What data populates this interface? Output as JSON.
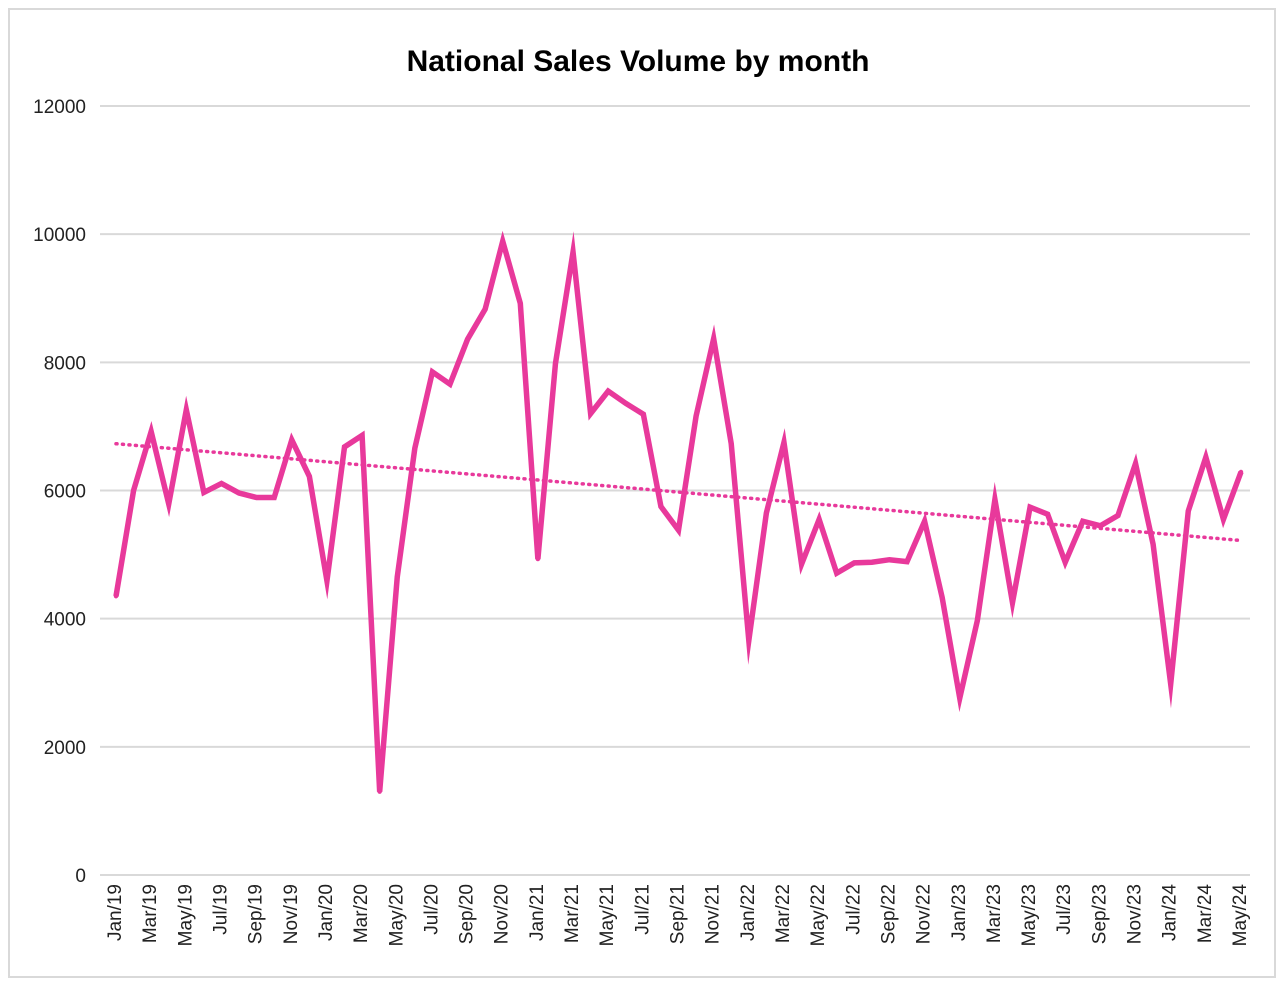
{
  "chart_data": {
    "type": "line",
    "title": "National Sales Volume by month",
    "xlabel": "",
    "ylabel": "",
    "ylim": [
      0,
      12000
    ],
    "y_ticks": [
      0,
      2000,
      4000,
      6000,
      8000,
      10000,
      12000
    ],
    "grid": true,
    "legend": "none",
    "categories": [
      "Jan/19",
      "Feb/19",
      "Mar/19",
      "Apr/19",
      "May/19",
      "Jun/19",
      "Jul/19",
      "Aug/19",
      "Sep/19",
      "Oct/19",
      "Nov/19",
      "Dec/19",
      "Jan/20",
      "Feb/20",
      "Mar/20",
      "Apr/20",
      "May/20",
      "Jun/20",
      "Jul/20",
      "Aug/20",
      "Sep/20",
      "Oct/20",
      "Nov/20",
      "Dec/20",
      "Jan/21",
      "Feb/21",
      "Mar/21",
      "Apr/21",
      "May/21",
      "Jun/21",
      "Jul/21",
      "Aug/21",
      "Sep/21",
      "Oct/21",
      "Nov/21",
      "Dec/21",
      "Jan/22",
      "Feb/22",
      "Mar/22",
      "Apr/22",
      "May/22",
      "Jun/22",
      "Jul/22",
      "Aug/22",
      "Sep/22",
      "Oct/22",
      "Nov/22",
      "Dec/22",
      "Jan/23",
      "Feb/23",
      "Mar/23",
      "Apr/23",
      "May/23",
      "Jun/23",
      "Jul/23",
      "Aug/23",
      "Sep/23",
      "Oct/23",
      "Nov/23",
      "Dec/23",
      "Jan/24",
      "Feb/24",
      "Mar/24",
      "Apr/24",
      "May/24"
    ],
    "tick_labels": [
      "Jan/19",
      "Mar/19",
      "May/19",
      "Jul/19",
      "Sep/19",
      "Nov/19",
      "Jan/20",
      "Mar/20",
      "May/20",
      "Jul/20",
      "Sep/20",
      "Nov/20",
      "Jan/21",
      "Mar/21",
      "May/21",
      "Jul/21",
      "Sep/21",
      "Nov/21",
      "Jan/22",
      "Mar/22",
      "May/22",
      "Jul/22",
      "Sep/22",
      "Nov/22",
      "Jan/23",
      "Mar/23",
      "May/23",
      "Jul/23",
      "Sep/23",
      "Nov/23",
      "Jan/24",
      "Mar/24",
      "May/24"
    ],
    "series": [
      {
        "name": "National Sales Volume",
        "color": "#e8399b",
        "values": [
          4350,
          6000,
          6920,
          5790,
          7260,
          5970,
          6110,
          5960,
          5890,
          5890,
          6790,
          6220,
          4590,
          6680,
          6860,
          1300,
          4650,
          6660,
          7850,
          7660,
          8360,
          8830,
          9890,
          8920,
          4930,
          7980,
          9720,
          7200,
          7550,
          7360,
          7190,
          5750,
          5380,
          7160,
          8370,
          6730,
          3660,
          5650,
          6750,
          4850,
          5550,
          4710,
          4870,
          4880,
          4920,
          4890,
          5520,
          4330,
          2760,
          3970,
          5860,
          4250,
          5740,
          5630,
          4880,
          5520,
          5450,
          5610,
          6420,
          5160,
          2980,
          5680,
          6520,
          5550,
          6290
        ]
      }
    ],
    "trendline": {
      "style": "dotted",
      "color": "#e8399b",
      "start_value": 6730,
      "end_value": 5220
    }
  }
}
